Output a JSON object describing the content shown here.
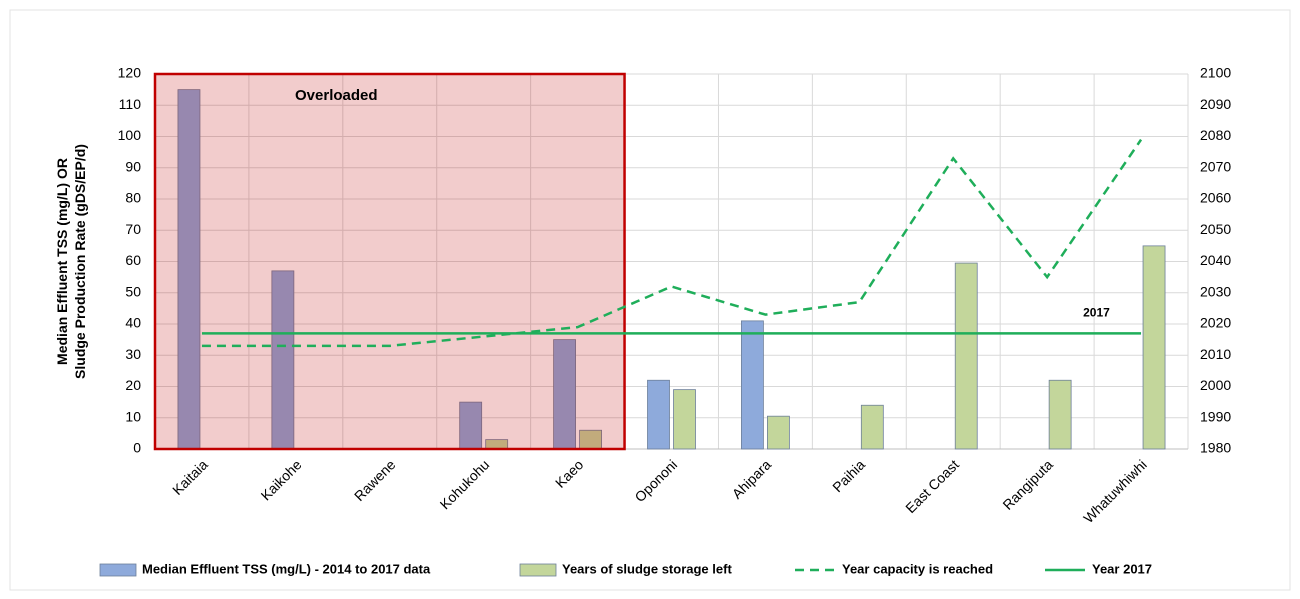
{
  "chart_data": {
    "type": "bar",
    "ylabel": [
      "Median Effluent TSS (mg/L) OR",
      "Sludge Production Rate (gDS/EP/d)"
    ],
    "categories": [
      "Kaitaia",
      "Kaikohe",
      "Rawene",
      "Kohukohu",
      "Kaeo",
      "Opononi",
      "Ahipara",
      "Paihia",
      "East Coast",
      "Rangiputa",
      "Whatuwhiwhi"
    ],
    "series": [
      {
        "name": "Median Effluent TSS (mg/L) - 2014 to 2017 data",
        "type": "bar",
        "color": "#8eaadb",
        "values": [
          115,
          57,
          null,
          15,
          35,
          22,
          41,
          null,
          null,
          null,
          null
        ]
      },
      {
        "name": "Years of sludge storage left",
        "type": "bar",
        "color": "#c3d69b",
        "values": [
          null,
          null,
          null,
          3,
          6,
          19,
          10.5,
          14,
          59.5,
          22,
          65
        ]
      },
      {
        "name": "Year capacity is reached",
        "type": "line",
        "dashed": true,
        "axis": "y2",
        "color": "#1fae5a",
        "values": [
          2013,
          2013,
          2013,
          2016,
          2019,
          2032,
          2023,
          2027,
          2073,
          2035,
          2079
        ]
      },
      {
        "name": "Year 2017",
        "type": "line",
        "dashed": false,
        "axis": "y2",
        "color": "#1fae5a",
        "values": [
          2017,
          2017,
          2017,
          2017,
          2017,
          2017,
          2017,
          2017,
          2017,
          2017,
          2017
        ]
      }
    ],
    "annotations": [
      {
        "text": "Overloaded",
        "from": "Kaitaia",
        "to": "Kaeo",
        "color": "#c00000"
      },
      {
        "text": "2017",
        "at": "Rangiputa",
        "color": "#1fae5a"
      }
    ],
    "ylim": [
      0,
      120
    ],
    "yticks": [
      0,
      10,
      20,
      30,
      40,
      50,
      60,
      70,
      80,
      90,
      100,
      110,
      120
    ],
    "y2lim": [
      1980,
      2100
    ],
    "y2ticks": [
      1980,
      1990,
      2000,
      2010,
      2020,
      2030,
      2040,
      2050,
      2060,
      2070,
      2080,
      2090,
      2100
    ],
    "grid": true,
    "legend": "bottom"
  }
}
